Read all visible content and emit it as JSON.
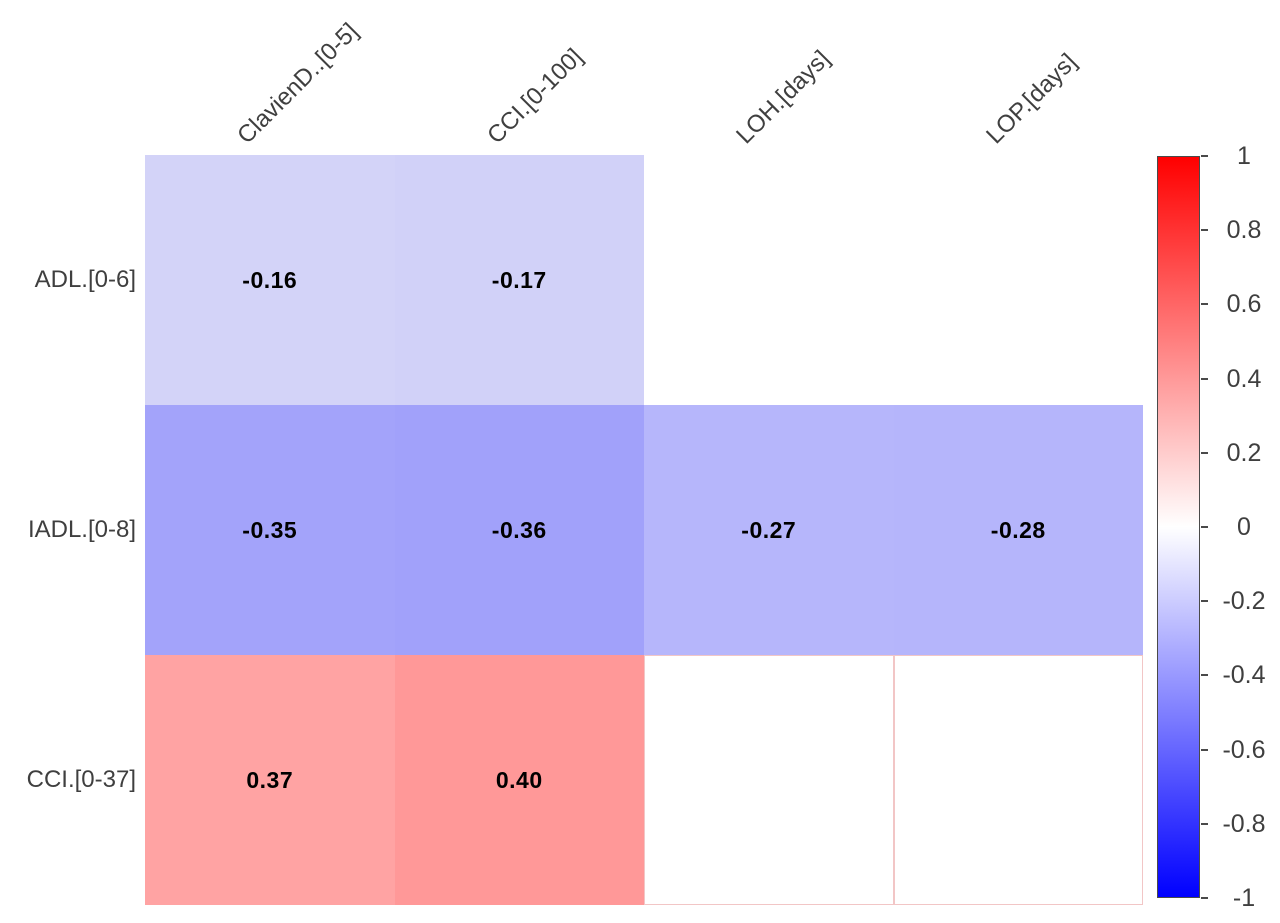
{
  "chart_data": {
    "type": "heatmap",
    "title": "",
    "xlabel": "",
    "ylabel": "",
    "rows": [
      "ADL.[0-6]",
      "IADL.[0-8]",
      "CCI.[0-37]"
    ],
    "columns": [
      "ClavienD..[0-5]",
      "CCI.[0-100]",
      "LOH.[days]",
      "LOP.[days]"
    ],
    "values": [
      [
        -0.16,
        -0.17,
        null,
        null
      ],
      [
        -0.35,
        -0.36,
        -0.27,
        -0.28
      ],
      [
        0.37,
        0.4,
        null,
        null
      ]
    ],
    "value_labels": [
      [
        "-0.16",
        "-0.17",
        "",
        ""
      ],
      [
        "-0.35",
        "-0.36",
        "-0.27",
        "-0.28"
      ],
      [
        "0.37",
        "0.40",
        "",
        ""
      ]
    ],
    "cell_colors": [
      [
        "#d3d3f8",
        "#d1d1f8",
        "#ffffff",
        "#ffffff"
      ],
      [
        "#a3a3fa",
        "#a1a1fa",
        "#b6b6fb",
        "#b5b5fb"
      ],
      [
        "#ffa3a3",
        "#ff9898",
        "#ffffff",
        "#ffffff"
      ]
    ],
    "cell_borders": [
      [
        "",
        "",
        "",
        ""
      ],
      [
        "",
        "",
        "",
        ""
      ],
      [
        "",
        "",
        "#f2c6c6",
        "#f2c6c6"
      ]
    ],
    "colorbar": {
      "min": -1,
      "max": 1,
      "tick_labels": [
        "1",
        "0.8",
        "0.6",
        "0.4",
        "0.2",
        "0",
        "-0.2",
        "-0.4",
        "-0.6",
        "-0.8",
        "-1"
      ],
      "top_color": "#ff0000",
      "mid_color": "#ffffff",
      "bottom_color": "#0000ff"
    },
    "style": {
      "label_text_color": "#3f3f3f",
      "value_text_color": "#000000",
      "background": "#ffffff"
    },
    "legend_position": "right",
    "grid": false
  }
}
